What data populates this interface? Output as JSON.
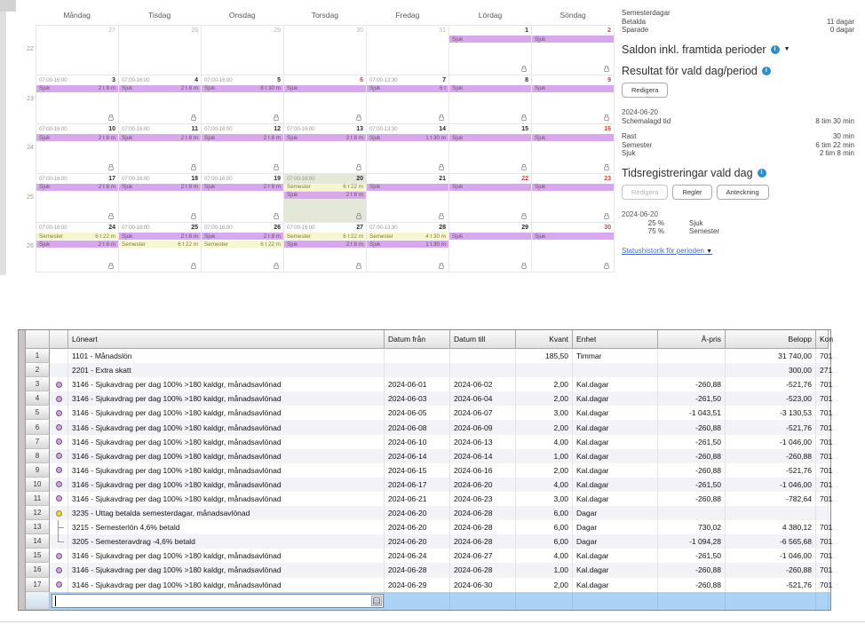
{
  "colors": {
    "sjuk_bar": "#d9a7ee",
    "semester_bar": "#f6f6cf",
    "selected_day_bg": "#e3e8d8",
    "active_row_bg": "#abd3f5",
    "info_icon_blue": "#2a8fd0",
    "holiday_date_red": "#cf4343"
  },
  "calendar": {
    "day_headers": [
      "Måndag",
      "Tisdag",
      "Onsdag",
      "Torsdag",
      "Fredag",
      "Lördag",
      "Söndag"
    ],
    "weeks": [
      {
        "num": "22",
        "days": [
          {
            "date": "27",
            "muted": true
          },
          {
            "date": "28",
            "muted": true
          },
          {
            "date": "29",
            "muted": true
          },
          {
            "date": "30",
            "muted": true
          },
          {
            "date": "31",
            "muted": true
          },
          {
            "date": "1",
            "lock": true,
            "bars": [
              {
                "t": "sjuk",
                "label": "Sjuk",
                "dur": ""
              }
            ]
          },
          {
            "date": "2",
            "red": true,
            "lock": true,
            "bars": [
              {
                "t": "sjuk",
                "label": "Sjuk",
                "dur": ""
              }
            ]
          }
        ]
      },
      {
        "num": "23",
        "days": [
          {
            "date": "3",
            "sched": "07:00-16:00",
            "lock": true,
            "bars": [
              {
                "t": "sjuk",
                "label": "Sjuk",
                "dur": "2 t 8 m"
              }
            ]
          },
          {
            "date": "4",
            "sched": "07:00-16:00",
            "lock": true,
            "bars": [
              {
                "t": "sjuk",
                "label": "Sjuk",
                "dur": "2 t 8 m"
              }
            ]
          },
          {
            "date": "5",
            "sched": "07:00-16:00",
            "lock": true,
            "bars": [
              {
                "t": "sjuk",
                "label": "Sjuk",
                "dur": "8 t 30 m"
              }
            ]
          },
          {
            "date": "6",
            "red": true,
            "lock": true,
            "bars": [
              {
                "t": "sjuk",
                "label": "Sjuk",
                "dur": ""
              }
            ]
          },
          {
            "date": "7",
            "sched": "07:00-13:30",
            "lock": true,
            "bars": [
              {
                "t": "sjuk",
                "label": "Sjuk",
                "dur": "6 t"
              }
            ]
          },
          {
            "date": "8",
            "lock": true,
            "bars": [
              {
                "t": "sjuk",
                "label": "Sjuk",
                "dur": ""
              }
            ]
          },
          {
            "date": "9",
            "red": true,
            "lock": true,
            "bars": [
              {
                "t": "sjuk",
                "label": "Sjuk",
                "dur": ""
              }
            ]
          }
        ]
      },
      {
        "num": "24",
        "days": [
          {
            "date": "10",
            "sched": "07:00-16:00",
            "lock": true,
            "bars": [
              {
                "t": "sjuk",
                "label": "Sjuk",
                "dur": "2 t 8 m"
              }
            ]
          },
          {
            "date": "11",
            "sched": "07:00-16:00",
            "lock": true,
            "bars": [
              {
                "t": "sjuk",
                "label": "Sjuk",
                "dur": "2 t 8 m"
              }
            ]
          },
          {
            "date": "12",
            "sched": "07:00-16:00",
            "lock": true,
            "bars": [
              {
                "t": "sjuk",
                "label": "Sjuk",
                "dur": "2 t 8 m"
              }
            ]
          },
          {
            "date": "13",
            "sched": "07:00-16:00",
            "lock": true,
            "bars": [
              {
                "t": "sjuk",
                "label": "Sjuk",
                "dur": "2 t 8 m"
              }
            ]
          },
          {
            "date": "14",
            "sched": "07:00-13:30",
            "lock": true,
            "bars": [
              {
                "t": "sjuk",
                "label": "Sjuk",
                "dur": "1 t 30 m"
              }
            ]
          },
          {
            "date": "15",
            "lock": true,
            "bars": [
              {
                "t": "sjuk",
                "label": "Sjuk",
                "dur": ""
              }
            ]
          },
          {
            "date": "16",
            "red": true,
            "lock": true,
            "bars": [
              {
                "t": "sjuk",
                "label": "Sjuk",
                "dur": ""
              }
            ]
          }
        ]
      },
      {
        "num": "25",
        "days": [
          {
            "date": "17",
            "sched": "07:00-16:00",
            "lock": true,
            "bars": [
              {
                "t": "sjuk",
                "label": "Sjuk",
                "dur": "2 t 8 m"
              }
            ]
          },
          {
            "date": "18",
            "sched": "07:00-16:00",
            "lock": true,
            "bars": [
              {
                "t": "sjuk",
                "label": "Sjuk",
                "dur": "2 t 8 m"
              }
            ]
          },
          {
            "date": "19",
            "sched": "07:00-16:00",
            "lock": true,
            "bars": [
              {
                "t": "sjuk",
                "label": "Sjuk",
                "dur": "2 t 8 m"
              }
            ]
          },
          {
            "date": "20",
            "sched": "07:00-16:00",
            "selected": true,
            "lock": true,
            "bars": [
              {
                "t": "sem",
                "label": "Semester",
                "dur": "6 t 22 m"
              },
              {
                "t": "sjuk",
                "label": "Sjuk",
                "dur": "2 t 8 m"
              }
            ]
          },
          {
            "date": "21",
            "lock": true,
            "bars": [
              {
                "t": "sjuk",
                "label": "Sjuk",
                "dur": ""
              }
            ]
          },
          {
            "date": "22",
            "red": true,
            "lock": true,
            "bars": [
              {
                "t": "sjuk",
                "label": "Sjuk",
                "dur": ""
              }
            ]
          },
          {
            "date": "23",
            "red": true,
            "lock": true,
            "bars": [
              {
                "t": "sjuk",
                "label": "Sjuk",
                "dur": ""
              }
            ]
          }
        ]
      },
      {
        "num": "26",
        "days": [
          {
            "date": "24",
            "sched": "07:00-16:00",
            "lock": true,
            "bars": [
              {
                "t": "sem",
                "label": "Semester",
                "dur": "6 t 22 m"
              },
              {
                "t": "sjuk",
                "label": "Sjuk",
                "dur": "2 t 8 m"
              }
            ]
          },
          {
            "date": "25",
            "sched": "07:00-16:00",
            "lock": true,
            "bars": [
              {
                "t": "sjuk",
                "label": "Sjuk",
                "dur": "2 t 8 m"
              },
              {
                "t": "sem",
                "label": "Semester",
                "dur": "6 t 22 m"
              }
            ]
          },
          {
            "date": "26",
            "sched": "07:00-16:00",
            "lock": true,
            "bars": [
              {
                "t": "sjuk",
                "label": "Sjuk",
                "dur": "2 t 8 m"
              },
              {
                "t": "sem",
                "label": "Semester",
                "dur": "6 t 22 m"
              }
            ]
          },
          {
            "date": "27",
            "sched": "07:00-16:00",
            "lock": true,
            "bars": [
              {
                "t": "sem",
                "label": "Semester",
                "dur": "6 t 22 m"
              },
              {
                "t": "sjuk",
                "label": "Sjuk",
                "dur": "2 t 8 m"
              }
            ]
          },
          {
            "date": "28",
            "sched": "07:00-13:30",
            "lock": true,
            "bars": [
              {
                "t": "sem",
                "label": "Semester",
                "dur": "4 t 30 m"
              },
              {
                "t": "sjuk",
                "label": "Sjuk",
                "dur": "1 t 30 m"
              }
            ]
          },
          {
            "date": "29",
            "lock": true,
            "bars": [
              {
                "t": "sjuk",
                "label": "Sjuk",
                "dur": ""
              }
            ]
          },
          {
            "date": "30",
            "red": true,
            "lock": true,
            "bars": [
              {
                "t": "sjuk",
                "label": "Sjuk",
                "dur": ""
              }
            ]
          }
        ]
      }
    ]
  },
  "panel": {
    "vacation_title": "Semesterdagar",
    "vacation_rows": [
      {
        "label": "Betalda",
        "value": "11 dagar"
      },
      {
        "label": "Sparade",
        "value": "0 dagar"
      }
    ],
    "saldon_heading": "Saldon inkl. framtida perioder",
    "resultat_heading": "Resultat för vald dag/period",
    "redigera_label": "Redigera",
    "date_selected": "2024-06-20",
    "schemalagd": {
      "label": "Schemalagd tid",
      "value": "8 tim 30 min"
    },
    "result_rows": [
      {
        "label": "Rast",
        "value": "30 min"
      },
      {
        "label": "Semester",
        "value": "6 tim 22 min"
      },
      {
        "label": "Sjuk",
        "value": "2 tim 8 min"
      }
    ],
    "tidsreg_heading": "Tidsregistreringar vald dag",
    "tidsreg_buttons": {
      "redigera": "Redigera",
      "regler": "Regler",
      "anteckning": "Anteckning"
    },
    "tidsreg_date": "2024-06-20",
    "percent_rows": [
      {
        "pct": "25 %",
        "label": "Sjuk"
      },
      {
        "pct": "75 %",
        "label": "Semester"
      }
    ],
    "status_link": "Statushistorik för perioden"
  },
  "table": {
    "headers": [
      "",
      "",
      "Löneart",
      "Datum från",
      "Datum till",
      "Kvant",
      "Enhet",
      "Å-pris",
      "Belopp",
      "Kon"
    ],
    "rows": [
      {
        "num": "1",
        "icon": "none",
        "loneart": "1101 - Månadslön",
        "from": "",
        "till": "",
        "kvant": "185,50",
        "enhet": "Timmar",
        "apris": "",
        "belopp": "31 740,00",
        "kon": "701"
      },
      {
        "num": "2",
        "icon": "none",
        "loneart": "2201 - Extra skatt",
        "from": "",
        "till": "",
        "kvant": "",
        "enhet": "",
        "apris": "",
        "belopp": "300,00",
        "kon": "271"
      },
      {
        "num": "3",
        "icon": "purple",
        "loneart": "3146 - Sjukavdrag per dag 100% >180 kaldgr, månadsavlönad",
        "from": "2024-06-01",
        "till": "2024-06-02",
        "kvant": "2,00",
        "enhet": "Kal.dagar",
        "apris": "-260,88",
        "belopp": "-521,76",
        "kon": "701"
      },
      {
        "num": "4",
        "icon": "purple",
        "loneart": "3146 - Sjukavdrag per dag 100% >180 kaldgr, månadsavlönad",
        "from": "2024-06-03",
        "till": "2024-06-04",
        "kvant": "2,00",
        "enhet": "Kal.dagar",
        "apris": "-261,50",
        "belopp": "-523,00",
        "kon": "701"
      },
      {
        "num": "5",
        "icon": "purple",
        "loneart": "3146 - Sjukavdrag per dag 100% >180 kaldgr, månadsavlönad",
        "from": "2024-06-05",
        "till": "2024-06-07",
        "kvant": "3,00",
        "enhet": "Kal.dagar",
        "apris": "-1 043,51",
        "belopp": "-3 130,53",
        "kon": "701"
      },
      {
        "num": "6",
        "icon": "purple",
        "loneart": "3146 - Sjukavdrag per dag 100% >180 kaldgr, månadsavlönad",
        "from": "2024-06-08",
        "till": "2024-06-09",
        "kvant": "2,00",
        "enhet": "Kal.dagar",
        "apris": "-260,88",
        "belopp": "-521,76",
        "kon": "701"
      },
      {
        "num": "7",
        "icon": "purple",
        "loneart": "3146 - Sjukavdrag per dag 100% >180 kaldgr, månadsavlönad",
        "from": "2024-06-10",
        "till": "2024-06-13",
        "kvant": "4,00",
        "enhet": "Kal.dagar",
        "apris": "-261,50",
        "belopp": "-1 046,00",
        "kon": "701"
      },
      {
        "num": "8",
        "icon": "purple",
        "loneart": "3146 - Sjukavdrag per dag 100% >180 kaldgr, månadsavlönad",
        "from": "2024-06-14",
        "till": "2024-06-14",
        "kvant": "1,00",
        "enhet": "Kal.dagar",
        "apris": "-260,88",
        "belopp": "-260,88",
        "kon": "701"
      },
      {
        "num": "9",
        "icon": "purple",
        "loneart": "3146 - Sjukavdrag per dag 100% >180 kaldgr, månadsavlönad",
        "from": "2024-06-15",
        "till": "2024-06-16",
        "kvant": "2,00",
        "enhet": "Kal.dagar",
        "apris": "-260,88",
        "belopp": "-521,76",
        "kon": "701"
      },
      {
        "num": "10",
        "icon": "purple",
        "loneart": "3146 - Sjukavdrag per dag 100% >180 kaldgr, månadsavlönad",
        "from": "2024-06-17",
        "till": "2024-06-20",
        "kvant": "4,00",
        "enhet": "Kal.dagar",
        "apris": "-261,50",
        "belopp": "-1 046,00",
        "kon": "701"
      },
      {
        "num": "11",
        "icon": "purple",
        "loneart": "3146 - Sjukavdrag per dag 100% >180 kaldgr, månadsavlönad",
        "from": "2024-06-21",
        "till": "2024-06-23",
        "kvant": "3,00",
        "enhet": "Kal.dagar",
        "apris": "-260,88",
        "belopp": "-782,64",
        "kon": "701"
      },
      {
        "num": "12",
        "icon": "yellow",
        "loneart": "3235 - Uttag betalda semesterdagar, månadsavlönad",
        "from": "2024-06-20",
        "till": "2024-06-28",
        "kvant": "6,00",
        "enhet": "Dagar",
        "apris": "",
        "belopp": "",
        "kon": ""
      },
      {
        "num": "13",
        "icon": "mid",
        "loneart": "3215 - Semesterlön 4,6% betald",
        "from": "2024-06-20",
        "till": "2024-06-28",
        "kvant": "6,00",
        "enhet": "Dagar",
        "apris": "730,02",
        "belopp": "4 380,12",
        "kon": "701"
      },
      {
        "num": "14",
        "icon": "end",
        "loneart": "3205 - Semesteravdrag -4,6% betald",
        "from": "2024-06-20",
        "till": "2024-06-28",
        "kvant": "6,00",
        "enhet": "Dagar",
        "apris": "-1 094,28",
        "belopp": "-6 565,68",
        "kon": "701"
      },
      {
        "num": "15",
        "icon": "purple",
        "loneart": "3146 - Sjukavdrag per dag 100% >180 kaldgr, månadsavlönad",
        "from": "2024-06-24",
        "till": "2024-06-27",
        "kvant": "4,00",
        "enhet": "Kal.dagar",
        "apris": "-261,50",
        "belopp": "-1 046,00",
        "kon": "701"
      },
      {
        "num": "16",
        "icon": "purple",
        "loneart": "3146 - Sjukavdrag per dag 100% >180 kaldgr, månadsavlönad",
        "from": "2024-06-28",
        "till": "2024-06-28",
        "kvant": "1,00",
        "enhet": "Kal.dagar",
        "apris": "-260,88",
        "belopp": "-260,88",
        "kon": "701"
      },
      {
        "num": "17",
        "icon": "purple",
        "loneart": "3146 - Sjukavdrag per dag 100% >180 kaldgr, månadsavlönad",
        "from": "2024-06-29",
        "till": "2024-06-30",
        "kvant": "2,00",
        "enhet": "Kal.dagar",
        "apris": "-260,88",
        "belopp": "-521,76",
        "kon": "701"
      }
    ],
    "new_row_input_value": ""
  }
}
